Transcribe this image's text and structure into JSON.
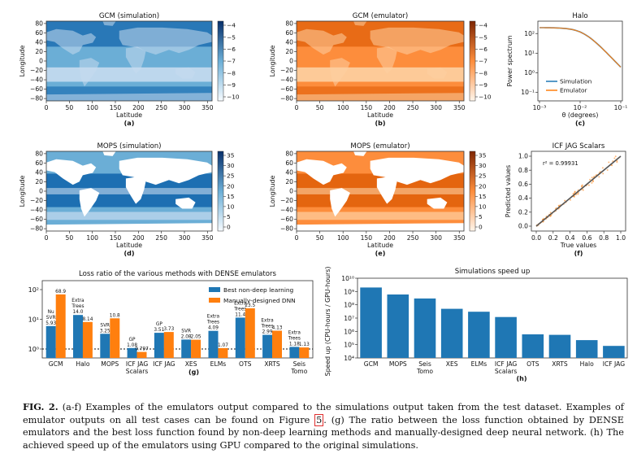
{
  "figure": {
    "panels": [
      {
        "id": "a",
        "title": "GCM (simulation)",
        "xlabel": "Latitude",
        "ylabel": "Longitude",
        "sublabel": "(a)",
        "xticks": [
          "0",
          "50",
          "100",
          "150",
          "200",
          "250",
          "300",
          "350"
        ],
        "yticks": [
          "80",
          "60",
          "40",
          "20",
          "0",
          "−20",
          "−40",
          "−60",
          "−80"
        ],
        "cbar_ticks": [
          "−4",
          "−5",
          "−6",
          "−7",
          "−8",
          "−9",
          "−10"
        ],
        "cmap": "blues"
      },
      {
        "id": "b",
        "title": "GCM (emulator)",
        "xlabel": "Latitude",
        "ylabel": "Longitude",
        "sublabel": "(b)",
        "xticks": [
          "0",
          "50",
          "100",
          "150",
          "200",
          "250",
          "300",
          "350"
        ],
        "yticks": [
          "80",
          "60",
          "40",
          "20",
          "0",
          "−20",
          "−40",
          "−60",
          "−80"
        ],
        "cbar_ticks": [
          "−4",
          "−5",
          "−6",
          "−7",
          "−8",
          "−9",
          "−10"
        ],
        "cmap": "oranges"
      },
      {
        "id": "d",
        "title": "MOPS (simulation)",
        "xlabel": "Latitude",
        "ylabel": "Longitude",
        "sublabel": "(d)",
        "xticks": [
          "0",
          "50",
          "100",
          "150",
          "200",
          "250",
          "300",
          "350"
        ],
        "yticks": [
          "80",
          "60",
          "40",
          "20",
          "0",
          "−20",
          "−40",
          "−60",
          "−80"
        ],
        "cbar_ticks": [
          "35",
          "30",
          "25",
          "20",
          "15",
          "10",
          "5",
          "0"
        ],
        "cmap": "blues"
      },
      {
        "id": "e",
        "title": "MOPS (emulator)",
        "xlabel": "Latitude",
        "ylabel": "Longitude",
        "sublabel": "(e)",
        "xticks": [
          "0",
          "50",
          "100",
          "150",
          "200",
          "250",
          "300",
          "350"
        ],
        "yticks": [
          "80",
          "60",
          "40",
          "20",
          "0",
          "−20",
          "−40",
          "−60",
          "−80"
        ],
        "cbar_ticks": [
          "35",
          "30",
          "25",
          "20",
          "15",
          "10",
          "5",
          "0"
        ],
        "cmap": "oranges"
      }
    ],
    "halo": {
      "title": "Halo",
      "xlabel": "θ (degrees)",
      "ylabel": "Power spectrum",
      "sublabel": "(c)",
      "xticks": [
        "10⁻³",
        "10⁻²",
        "10⁻¹"
      ],
      "yticks": [
        "10²",
        "10¹",
        "10⁰",
        "10⁻¹"
      ],
      "legend": [
        "Simulation",
        "Emulator"
      ],
      "colors": [
        "#1f77b4",
        "#ff7f0e"
      ]
    },
    "icf": {
      "title": "ICF JAG Scalars",
      "xlabel": "True values",
      "ylabel": "Predicted values",
      "sublabel": "(f)",
      "annotation": "r² = 0.99931",
      "xticks": [
        "0.0",
        "0.2",
        "0.4",
        "0.6",
        "0.8",
        "1.0"
      ],
      "yticks": [
        "0.0",
        "0.2",
        "0.4",
        "0.6",
        "0.8",
        "1.0"
      ]
    }
  },
  "chart_data": [
    {
      "type": "bar",
      "title": "Loss ratio of the various methods with DENSE emulators",
      "sublabel": "(g)",
      "categories": [
        "GCM",
        "Halo",
        "MOPS",
        "ICF JAG Scalars",
        "ICF JAG",
        "XES",
        "ELMs",
        "OTS",
        "XRTS",
        "Seis Tomo"
      ],
      "yscale": "log",
      "ylim": [
        0.5,
        200
      ],
      "yticks": [
        "10⁰",
        "10¹",
        "10²"
      ],
      "series": [
        {
          "name": "Best non-deep learning",
          "color": "#1f77b4",
          "values": [
            5.93,
            14.0,
            3.25,
            1.08,
            3.51,
            2.08,
            4.09,
            11.4,
            2.99,
            1.18
          ],
          "labels": [
            "Nu\nSVR\n5.93",
            "Extra\nTrees\n14.0",
            "SVR\n3.25",
            "GP\n1.08",
            "GP\n3.51",
            "SVR\n2.08",
            "Extra\nTrees\n4.09",
            "Extra\nTrees\n11.4",
            "Extra\nTrees\n2.99",
            "Extra\nTrees\n1.18"
          ]
        },
        {
          "name": "Manually-designed DNN",
          "color": "#ff7f0e",
          "values": [
            68.9,
            8.14,
            10.8,
            0.797,
            3.73,
            2.05,
            1.07,
            23.5,
            4.13,
            1.13
          ],
          "labels": [
            "68.9",
            "8.14",
            "10.8",
            "0.797",
            "3.73",
            "2.05",
            "1.07",
            "23.5",
            "4.13",
            "1.13"
          ]
        }
      ],
      "reference_line": 1
    },
    {
      "type": "bar",
      "title": "Simulations speed up",
      "sublabel": "(h)",
      "ylabel": "Speed up (CPU-hours / GPU-hours)",
      "yscale": "log",
      "ylim": [
        10000,
        10000000000
      ],
      "yticks": [
        "10⁴",
        "10⁵",
        "10⁶",
        "10⁷",
        "10⁸",
        "10⁹",
        "10¹⁰"
      ],
      "categories": [
        "GCM",
        "MOPS",
        "Seis Tomo",
        "XES",
        "ELMs",
        "ICF JAG Scalars",
        "OTS",
        "XRTS",
        "Halo",
        "ICF JAG"
      ],
      "values": [
        2000000000,
        600000000,
        300000000,
        50000000,
        30000000,
        12000000,
        600000,
        550000,
        220000,
        80000
      ],
      "color": "#1f77b4"
    }
  ],
  "caption": {
    "fig_label": "FIG. 2.",
    "text_1": " (a-f) Examples of the emulators output compared to the simulations output taken from the test dataset. Examples of emulator outputs on all test cases can be found on Figure ",
    "ref": "5",
    "text_2": ". (g) The ratio between the loss function obtained by DENSE emulators and the best loss function found by non-deep learning methods and manually-designed deep neural network. (h) The achieved speed up of the emulators using GPU compared to the original simulations."
  }
}
